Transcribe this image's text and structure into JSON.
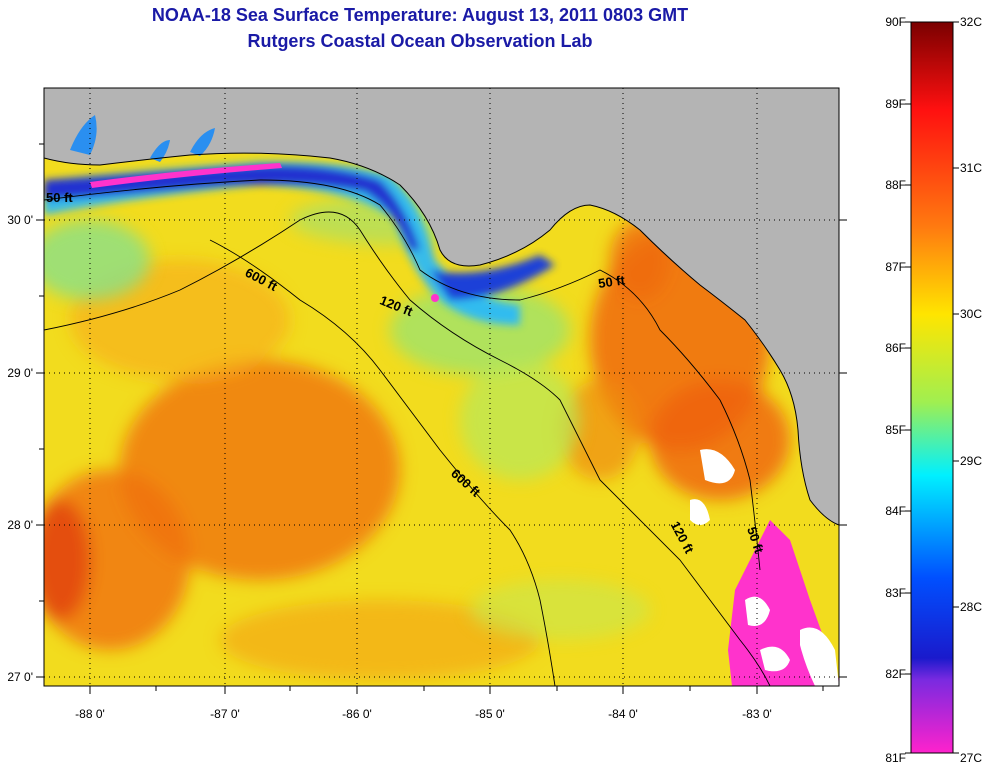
{
  "titles": {
    "line1": "NOAA-18 Sea Surface Temperature:  August 13, 2011 0803 GMT",
    "line2": "Rutgers Coastal Ocean Observation Lab"
  },
  "map": {
    "lon_labels": [
      "-88 0'",
      "-87 0'",
      "-86 0'",
      "-85 0'",
      "-84 0'",
      "-83 0'"
    ],
    "lat_labels": [
      "30 0'",
      "29 0'",
      "28 0'",
      "27 0'"
    ],
    "contour_labels": [
      "50 ft",
      "600 ft",
      "120 ft",
      "50 ft",
      "600 ft",
      "120 ft",
      "50 ft"
    ],
    "colors": {
      "land": "#b4b4b4",
      "cloud": "#ffffff",
      "ocean_base": "#f2dc1e",
      "warm": "#f06a0a",
      "cool": "#9fe36a",
      "cold": "#2d9cf0",
      "coldest": "#ff33cc"
    }
  },
  "colorbar": {
    "fahrenheit": [
      "90F",
      "89F",
      "88F",
      "87F",
      "86F",
      "85F",
      "84F",
      "83F",
      "82F",
      "81F"
    ],
    "celsius": [
      "32C",
      "31C",
      "30C",
      "29C",
      "28C",
      "27C"
    ],
    "gradient": [
      "#7a0000",
      "#ff1010",
      "#ff7a10",
      "#ffe500",
      "#a0ef50",
      "#00f0ff",
      "#0050ff",
      "#1a1acc",
      "#ff22cc"
    ]
  }
}
